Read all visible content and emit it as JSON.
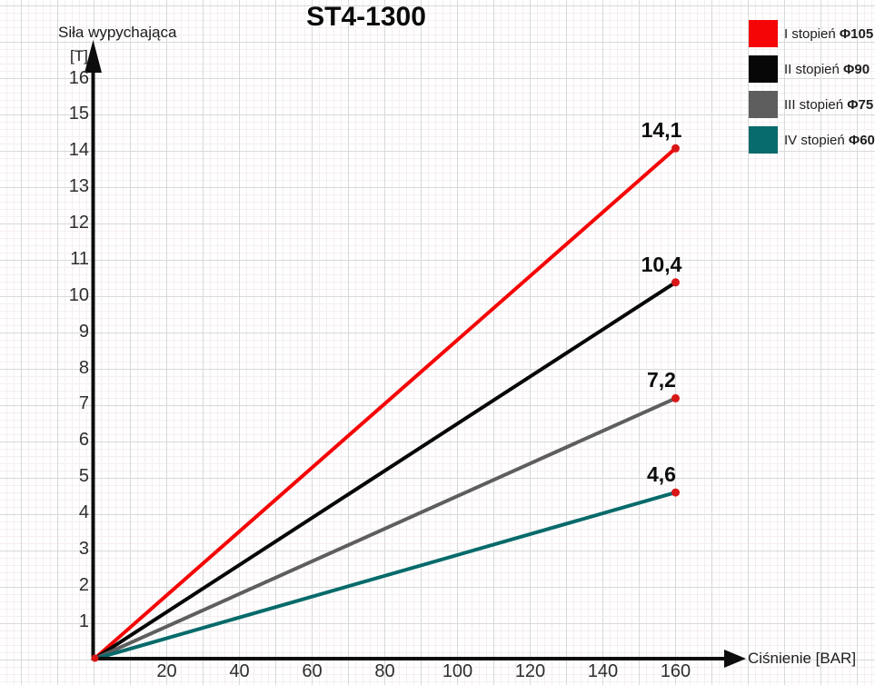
{
  "chart_data": {
    "type": "line",
    "title": "ST4-1300",
    "xlabel": "Ciśnienie [BAR]",
    "ylabel_line1": "Siła wypychająca",
    "ylabel_line2": "[T]",
    "x_ticks": [
      20,
      40,
      60,
      80,
      100,
      120,
      140,
      160
    ],
    "y_ticks": [
      1,
      2,
      3,
      4,
      5,
      6,
      7,
      8,
      9,
      10,
      11,
      12,
      13,
      14,
      15,
      16
    ],
    "xlim": [
      0,
      180
    ],
    "ylim": [
      0,
      17
    ],
    "grid": true,
    "legend_position": "top-right",
    "axis_color": "#0d0d0d",
    "marker_color": "#d81717",
    "series": [
      {
        "name": "I stopień Φ105",
        "legend_name": "I stopień",
        "diameter": "Φ105",
        "color": "#f50505",
        "x": [
          0,
          160
        ],
        "y": [
          0,
          14.1
        ],
        "end_label": "14,1"
      },
      {
        "name": "II stopień Φ90",
        "legend_name": "II stopień",
        "diameter": "Φ90",
        "color": "#070707",
        "x": [
          0,
          160
        ],
        "y": [
          0,
          10.4
        ],
        "end_label": "10,4"
      },
      {
        "name": "III stopień Φ75",
        "legend_name": "III stopień",
        "diameter": "Φ75",
        "color": "#5e5e5e",
        "x": [
          0,
          160
        ],
        "y": [
          0,
          7.2
        ],
        "end_label": "7,2"
      },
      {
        "name": "IV stopień Φ60",
        "legend_name": "IV stopień",
        "diameter": "Φ60",
        "color": "#076a6b",
        "x": [
          0,
          160
        ],
        "y": [
          0,
          4.6
        ],
        "end_label": "4,6"
      }
    ]
  }
}
